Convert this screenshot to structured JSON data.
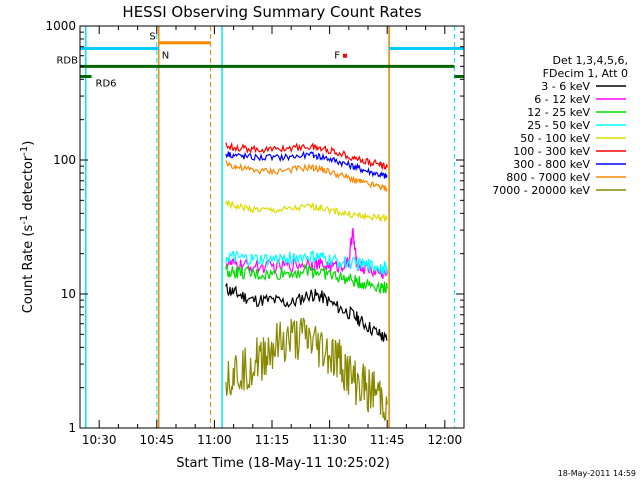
{
  "chart_data": {
    "type": "line",
    "title": "HESSI Observing Summary Count Rates",
    "xlabel": "Start Time (18-May-11 10:25:02)",
    "ylabel_main": "Count Rate (s",
    "ylabel_sup1": "-1",
    "ylabel_mid": " detector",
    "ylabel_sup2": "-1",
    "ylabel_end": ")",
    "yscale": "log",
    "ylim": [
      1,
      1000
    ],
    "xlim_minutes": [
      25,
      125
    ],
    "x_tick_minutes": [
      30,
      45,
      60,
      75,
      90,
      105,
      120
    ],
    "x_tick_labels": [
      "10:30",
      "10:45",
      "11:00",
      "11:15",
      "11:30",
      "11:45",
      "12:00"
    ],
    "y_ticks": [
      1,
      10,
      100,
      1000
    ],
    "y_tick_labels": [
      "1",
      "10",
      "100",
      "1000"
    ],
    "legend_header": [
      "Det 1,3,4,5,6,",
      "FDecim 1, Att 0"
    ],
    "legend_placement": "right",
    "series": [
      {
        "name": "3 - 6 keV",
        "color": "#000000",
        "x_minutes": [
          63,
          66,
          70,
          75,
          80,
          85,
          88,
          92,
          96,
          99,
          103,
          105
        ],
        "y": [
          11,
          10,
          9,
          9,
          8.5,
          10,
          9.5,
          8,
          7,
          6,
          5,
          4.5
        ]
      },
      {
        "name": "6 - 12 keV",
        "color": "#ff00ff",
        "x_minutes": [
          63,
          66,
          70,
          75,
          80,
          85,
          88,
          92,
          95,
          96,
          97,
          99,
          103,
          105
        ],
        "y": [
          17,
          16.5,
          16,
          16,
          16.5,
          17,
          16.5,
          16,
          17,
          30,
          17,
          15.5,
          14.5,
          14
        ]
      },
      {
        "name": "12 - 25 keV",
        "color": "#00dd00",
        "x_minutes": [
          63,
          66,
          70,
          75,
          80,
          85,
          88,
          92,
          96,
          99,
          103,
          105
        ],
        "y": [
          15,
          14.5,
          14,
          14,
          14.5,
          15,
          14.5,
          13.5,
          12.5,
          12,
          11.5,
          11
        ]
      },
      {
        "name": "25 - 50 keV",
        "color": "#00ffff",
        "x_minutes": [
          63,
          66,
          70,
          75,
          80,
          85,
          88,
          92,
          96,
          99,
          103,
          105
        ],
        "y": [
          19,
          18.5,
          18,
          18,
          18.5,
          19,
          18.5,
          17.5,
          17,
          16.5,
          16,
          15.5
        ]
      },
      {
        "name": "50 - 100 keV",
        "color": "#dddd00",
        "x_minutes": [
          63,
          66,
          70,
          75,
          80,
          85,
          88,
          92,
          96,
          99,
          103,
          105
        ],
        "y": [
          47,
          45,
          43,
          42,
          43,
          45,
          44,
          41,
          39,
          38,
          37,
          37
        ]
      },
      {
        "name": "100 - 300 keV",
        "color": "#ff0000",
        "x_minutes": [
          63,
          66,
          70,
          75,
          80,
          85,
          88,
          92,
          96,
          99,
          103,
          105
        ],
        "y": [
          128,
          124,
          120,
          120,
          123,
          126,
          122,
          114,
          105,
          98,
          93,
          88
        ]
      },
      {
        "name": "300 - 800 keV",
        "color": "#0000ff",
        "x_minutes": [
          63,
          66,
          70,
          75,
          80,
          85,
          88,
          92,
          96,
          99,
          103,
          105
        ],
        "y": [
          112,
          108,
          105,
          104,
          106,
          109,
          106,
          98,
          90,
          84,
          78,
          75
        ]
      },
      {
        "name": "800 - 7000 keV",
        "color": "#ff8800",
        "x_minutes": [
          63,
          66,
          70,
          75,
          80,
          85,
          88,
          92,
          96,
          99,
          103,
          105
        ],
        "y": [
          95,
          88,
          84,
          82,
          85,
          88,
          85,
          78,
          72,
          67,
          63,
          61
        ]
      },
      {
        "name": "7000 - 20000 keV",
        "color": "#888800",
        "x_minutes": [
          63,
          66,
          70,
          73,
          76,
          80,
          84,
          87,
          90,
          93,
          96,
          99,
          102,
          105
        ],
        "y": [
          2.5,
          2.6,
          3,
          3.5,
          4,
          4.5,
          4.5,
          4,
          3.5,
          3,
          2.2,
          2,
          1.8,
          1.5
        ]
      }
    ],
    "flags": [
      {
        "label": "RDB",
        "color": "#006600",
        "y": 500,
        "segments_minutes": [
          [
            25,
            122.5
          ]
        ]
      },
      {
        "label": "RD6",
        "color": "#006600",
        "y": 420,
        "segments_minutes": [
          [
            25,
            28
          ],
          [
            122.5,
            125
          ]
        ]
      },
      {
        "label": "S",
        "color": "#ff8800",
        "y": 750,
        "segments_minutes": [
          [
            45.5,
            59
          ]
        ]
      },
      {
        "label": "N",
        "color": "#00ccff",
        "y": 680,
        "segments_minutes": [
          [
            25,
            45.5
          ],
          [
            105.5,
            125
          ]
        ]
      },
      {
        "label": "F",
        "color": "#ff0000",
        "y": 600,
        "marker_minutes": 94
      }
    ],
    "night_markers_minutes": [
      45.5,
      105.5
    ],
    "saa_markers_minutes": [
      59
    ],
    "cyan_solid_markers_minutes": [
      26.5,
      62,
      105.5
    ],
    "cyan_dashed_markers_minutes": [
      45,
      122.5
    ],
    "footer_date": "18-May-2011 14:59"
  }
}
